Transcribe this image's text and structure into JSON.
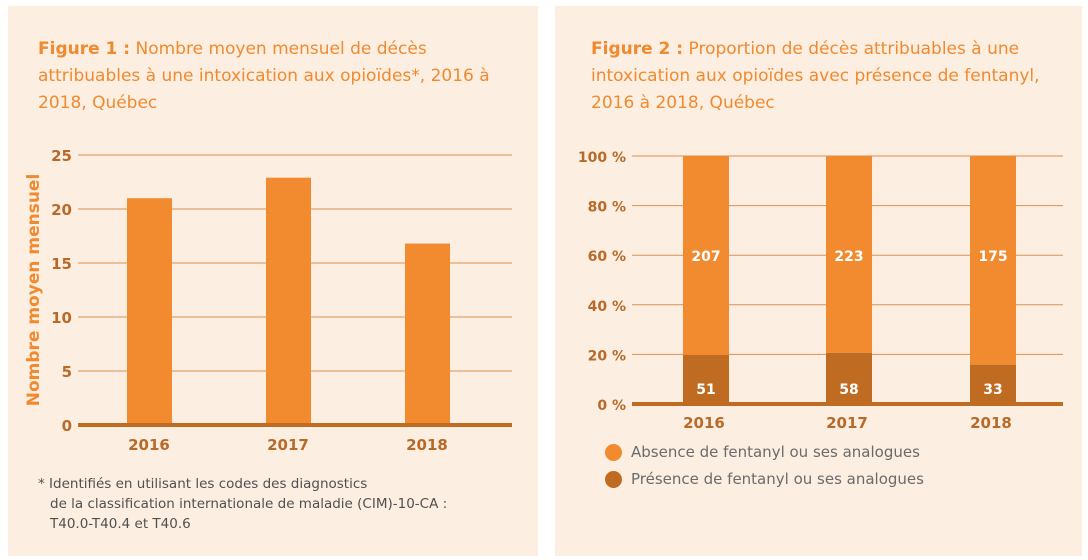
{
  "colors": {
    "background": "#fdeee2",
    "bar": "#f28a30",
    "bar_dark": "#c06b22",
    "axis": "#c06b22",
    "text": "#f08a2f",
    "tick": "#b86a28"
  },
  "figure1": {
    "label": "Figure 1 :",
    "title": "Nombre moyen mensuel de décès attribuables à une intoxication aux opioïdes*, 2016 à 2018, Québec",
    "footnote": [
      "* Identifiés en utilisant les codes des diagnostics",
      "de la classification internationale de maladie (CIM)-10-CA :",
      "T40.0-T40.4 et T40.6"
    ]
  },
  "figure2": {
    "label": "Figure 2 :",
    "title": "Proportion de décès attribuables à une intoxication aux opioïdes avec présence de fentanyl, 2016 à 2018, Québec"
  },
  "chart_data": [
    {
      "type": "bar",
      "categories": [
        "2016",
        "2017",
        "2018"
      ],
      "values": [
        21.0,
        22.9,
        16.8
      ],
      "ylabel": "Nombre moyen mensuel",
      "ylim": [
        0,
        25
      ],
      "yticks": [
        "0",
        "5",
        "10",
        "15",
        "20",
        "25"
      ],
      "grid": true
    },
    {
      "type": "bar",
      "stacked": true,
      "normalized": true,
      "categories": [
        "2016",
        "2017",
        "2018"
      ],
      "series": [
        {
          "name": "Présence de fentanyl ou ses analogues",
          "values": [
            51,
            58,
            33
          ],
          "color": "#c06b22"
        },
        {
          "name": "Absence de fentanyl ou ses analogues",
          "values": [
            207,
            223,
            175
          ],
          "color": "#f28a30"
        }
      ],
      "ylim": [
        0,
        100
      ],
      "yticks": [
        "0 %",
        "20 %",
        "40 %",
        "60 %",
        "80 %",
        "100 %"
      ],
      "grid": true,
      "legend": {
        "position": "bottom-left",
        "entries": [
          "Absence de fentanyl ou ses analogues",
          "Présence de fentanyl ou ses analogues"
        ]
      }
    }
  ]
}
